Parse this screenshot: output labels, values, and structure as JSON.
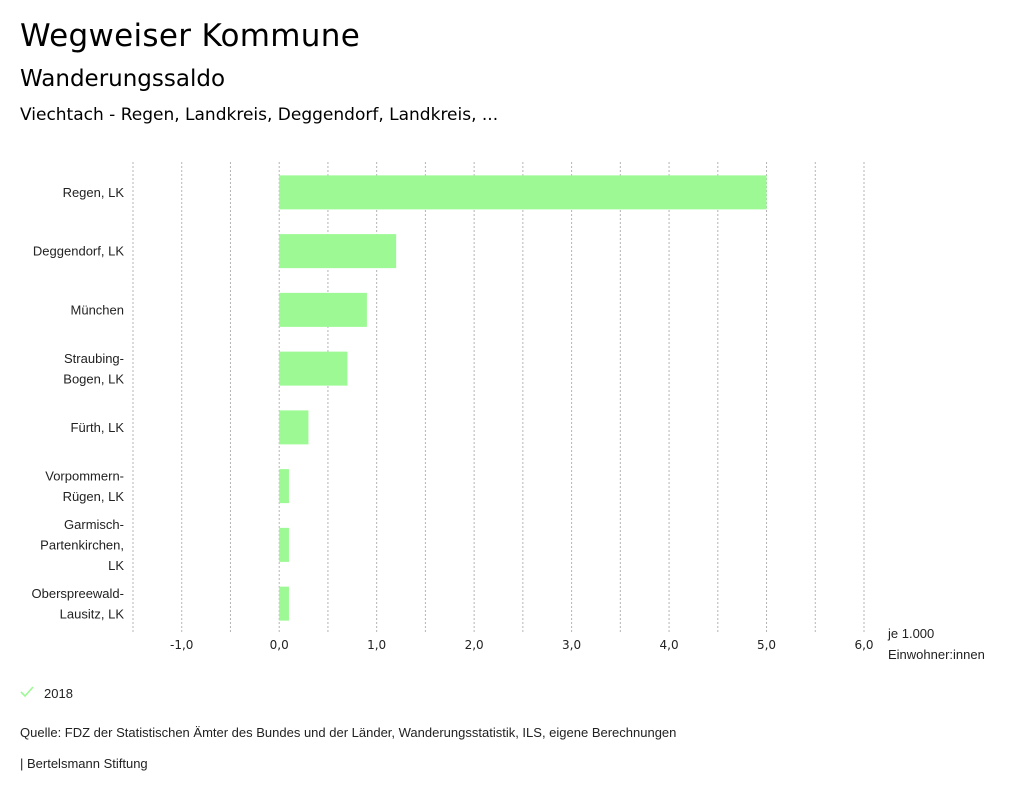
{
  "header": {
    "title": "Wegweiser Kommune",
    "subtitle": "Wanderungssaldo",
    "region": "Viechtach - Regen, Landkreis, Deggendorf, Landkreis, ..."
  },
  "chart_data": {
    "type": "bar",
    "orientation": "horizontal",
    "categories": [
      [
        "Regen, LK"
      ],
      [
        "Deggendorf, LK"
      ],
      [
        "München"
      ],
      [
        "Straubing-",
        "Bogen, LK"
      ],
      [
        "Fürth, LK"
      ],
      [
        "Vorpommern-",
        "Rügen, LK"
      ],
      [
        "Garmisch-",
        "Partenkirchen,",
        "LK"
      ],
      [
        "Oberspreewald-",
        "Lausitz, LK"
      ]
    ],
    "series": [
      {
        "name": "2018",
        "color": "#9cf994",
        "values": [
          5.0,
          1.2,
          0.9,
          0.7,
          0.3,
          0.1,
          0.1,
          0.1
        ]
      }
    ],
    "xlim": [
      -1.5,
      6.0
    ],
    "xticks": [
      -1.0,
      0.0,
      1.0,
      2.0,
      3.0,
      4.0,
      5.0,
      6.0
    ],
    "xtick_labels": [
      "-1,0",
      "0,0",
      "1,0",
      "2,0",
      "3,0",
      "4,0",
      "5,0",
      "6,0"
    ],
    "grid": true,
    "xlabel": [
      "je 1.000",
      "Einwohner:innen"
    ],
    "legend_position": "bottom-left"
  },
  "legend": {
    "items": [
      {
        "label": "2018",
        "icon": "check-icon",
        "color": "#9cf994"
      }
    ]
  },
  "footer": {
    "source": "Quelle: FDZ der Statistischen Ämter des Bundes und der Länder, Wanderungsstatistik, ILS, eigene Berechnungen",
    "brand": "| Bertelsmann Stiftung"
  }
}
